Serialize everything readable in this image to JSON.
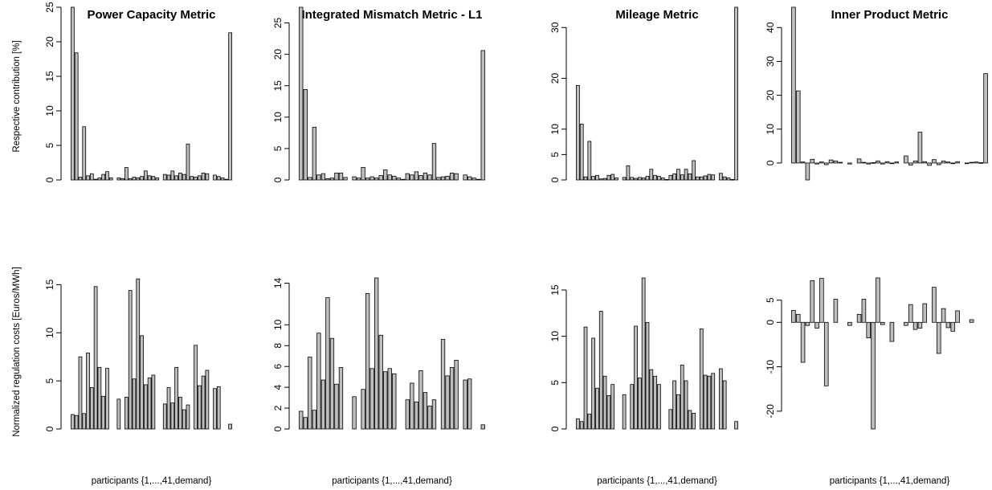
{
  "colors": {
    "bar_fill": "#bebebe",
    "bar_stroke": "#000000"
  },
  "shared": {
    "xlabel": "participants {1,...,41,demand}",
    "ylabel_top": "Respective contribution [%]",
    "ylabel_bottom": "Normalized regulation costs [Euros/MWh]"
  },
  "chart_data": [
    {
      "type": "bar",
      "title": "Power Capacity Metric",
      "xlabel": "",
      "ylabel": "Respective contribution [%]",
      "yticks": [
        0,
        5,
        10,
        15,
        20,
        25
      ],
      "ylim": [
        0,
        25
      ],
      "values": [
        25.0,
        18.4,
        0.4,
        7.7,
        0.6,
        0.9,
        0.1,
        0.3,
        0.8,
        1.2,
        0.3,
        0.0,
        0.3,
        0.2,
        1.8,
        0.2,
        0.4,
        0.3,
        0.5,
        1.3,
        0.6,
        0.5,
        0.3,
        0.0,
        0.8,
        0.7,
        1.3,
        0.6,
        1.0,
        0.8,
        5.2,
        0.5,
        0.4,
        0.6,
        1.0,
        0.9,
        0.0,
        0.7,
        0.5,
        0.3,
        0.1,
        21.3
      ]
    },
    {
      "type": "bar",
      "title": "Integrated Mismatch Metric - L1",
      "xlabel": "",
      "ylabel": "",
      "yticks": [
        0,
        5,
        10,
        15,
        20,
        25
      ],
      "ylim": [
        0,
        27.5
      ],
      "values": [
        27.5,
        14.4,
        0.4,
        8.4,
        0.8,
        1.0,
        0.2,
        0.3,
        1.1,
        1.1,
        0.4,
        0.0,
        0.5,
        0.3,
        2.0,
        0.3,
        0.5,
        0.3,
        0.7,
        1.6,
        0.8,
        0.6,
        0.3,
        0.1,
        1.0,
        0.8,
        1.3,
        0.7,
        1.1,
        0.8,
        5.8,
        0.4,
        0.5,
        0.6,
        1.1,
        1.0,
        0.0,
        0.8,
        0.5,
        0.3,
        0.1,
        20.6
      ]
    },
    {
      "type": "bar",
      "title": "Mileage Metric",
      "xlabel": "",
      "ylabel": "",
      "yticks": [
        0,
        5,
        10,
        20,
        30
      ],
      "ylim": [
        0,
        34
      ],
      "values": [
        18.6,
        11.0,
        0.6,
        7.6,
        0.7,
        0.9,
        0.2,
        0.3,
        0.9,
        1.1,
        0.4,
        0.0,
        0.5,
        2.8,
        0.5,
        0.3,
        0.5,
        0.4,
        0.7,
        2.1,
        0.9,
        0.7,
        0.4,
        0.1,
        0.9,
        1.2,
        2.1,
        1.0,
        2.1,
        1.2,
        3.8,
        0.6,
        0.6,
        0.8,
        1.1,
        1.0,
        0.0,
        1.3,
        0.6,
        0.4,
        0.1,
        34.0
      ]
    },
    {
      "type": "bar",
      "title": "Inner Product Metric",
      "xlabel": "",
      "ylabel": "",
      "yticks": [
        0,
        10,
        20,
        30,
        40
      ],
      "ylim": [
        -5,
        46
      ],
      "values": [
        46.0,
        21.3,
        0.3,
        -5.0,
        1.1,
        -0.3,
        0.3,
        -0.5,
        0.9,
        0.6,
        0.2,
        0.0,
        -0.3,
        0.0,
        1.2,
        0.2,
        -0.3,
        0.1,
        0.6,
        -0.3,
        0.4,
        -0.2,
        0.3,
        0.0,
        2.1,
        -0.6,
        0.6,
        9.1,
        0.4,
        -0.7,
        1.0,
        -0.5,
        0.6,
        0.3,
        -0.2,
        0.4,
        0.0,
        -0.2,
        0.2,
        0.3,
        0.1,
        26.4
      ]
    },
    {
      "type": "bar",
      "title": "",
      "xlabel": "participants {1,...,41,demand}",
      "ylabel": "Normalized regulation costs [Euros/MWh]",
      "yticks": [
        0,
        5,
        10,
        15
      ],
      "ylim": [
        0,
        15.7
      ],
      "values": [
        1.5,
        1.4,
        7.5,
        1.6,
        7.9,
        4.3,
        14.8,
        6.4,
        3.4,
        6.3,
        0,
        0,
        3.1,
        0,
        3.3,
        14.4,
        5.2,
        15.6,
        9.7,
        4.6,
        5.3,
        5.6,
        0,
        0,
        2.6,
        4.3,
        2.7,
        6.4,
        3.3,
        2.0,
        2.5,
        0,
        8.7,
        4.5,
        5.5,
        6.1,
        0,
        4.2,
        4.4,
        0,
        0,
        0.5
      ]
    },
    {
      "type": "bar",
      "title": "",
      "xlabel": "participants {1,...,41,demand}",
      "ylabel": "",
      "yticks": [
        0,
        2,
        4,
        6,
        8,
        10,
        14
      ],
      "ylim": [
        0,
        14.5
      ],
      "values": [
        1.7,
        1.1,
        6.9,
        1.8,
        9.2,
        4.7,
        12.6,
        8.7,
        4.3,
        5.9,
        0,
        0,
        3.1,
        0,
        3.8,
        13.0,
        5.8,
        14.5,
        9.0,
        5.5,
        5.8,
        5.3,
        0,
        0,
        2.8,
        4.4,
        2.6,
        5.6,
        3.5,
        2.2,
        2.8,
        0,
        8.6,
        5.1,
        5.9,
        6.6,
        0,
        4.7,
        4.8,
        0,
        0,
        0.4
      ]
    },
    {
      "type": "bar",
      "title": "",
      "xlabel": "participants {1,...,41,demand}",
      "ylabel": "",
      "yticks": [
        0,
        5,
        10,
        15
      ],
      "ylim": [
        0,
        16.3
      ],
      "values": [
        1.1,
        0.8,
        11.0,
        1.6,
        9.8,
        4.4,
        12.7,
        5.7,
        3.6,
        4.8,
        0,
        0,
        3.7,
        0,
        4.8,
        11.1,
        5.5,
        16.3,
        11.5,
        6.4,
        5.7,
        4.8,
        0,
        0,
        2.1,
        5.2,
        3.7,
        6.9,
        5.2,
        2.0,
        1.7,
        0,
        10.8,
        5.8,
        5.7,
        6.0,
        0,
        6.5,
        5.2,
        0,
        0,
        0.8
      ]
    },
    {
      "type": "bar",
      "title": "",
      "xlabel": "participants {1,...,41,demand}",
      "ylabel": "",
      "yticks": [
        -20,
        -10,
        0,
        5
      ],
      "ylim": [
        -24,
        10
      ],
      "values": [
        2.7,
        1.8,
        -9.0,
        -0.7,
        9.4,
        -1.3,
        9.9,
        -14.3,
        0,
        5.2,
        0,
        0,
        -0.7,
        0,
        1.8,
        5.2,
        -3.5,
        -24.0,
        10.0,
        -0.5,
        0,
        -4.3,
        0,
        0,
        -0.7,
        4.0,
        -1.6,
        -1.3,
        4.2,
        0,
        7.9,
        -7.0,
        3.1,
        -1.2,
        -2.0,
        2.6,
        0,
        0,
        0.6,
        0,
        0,
        0
      ]
    }
  ]
}
